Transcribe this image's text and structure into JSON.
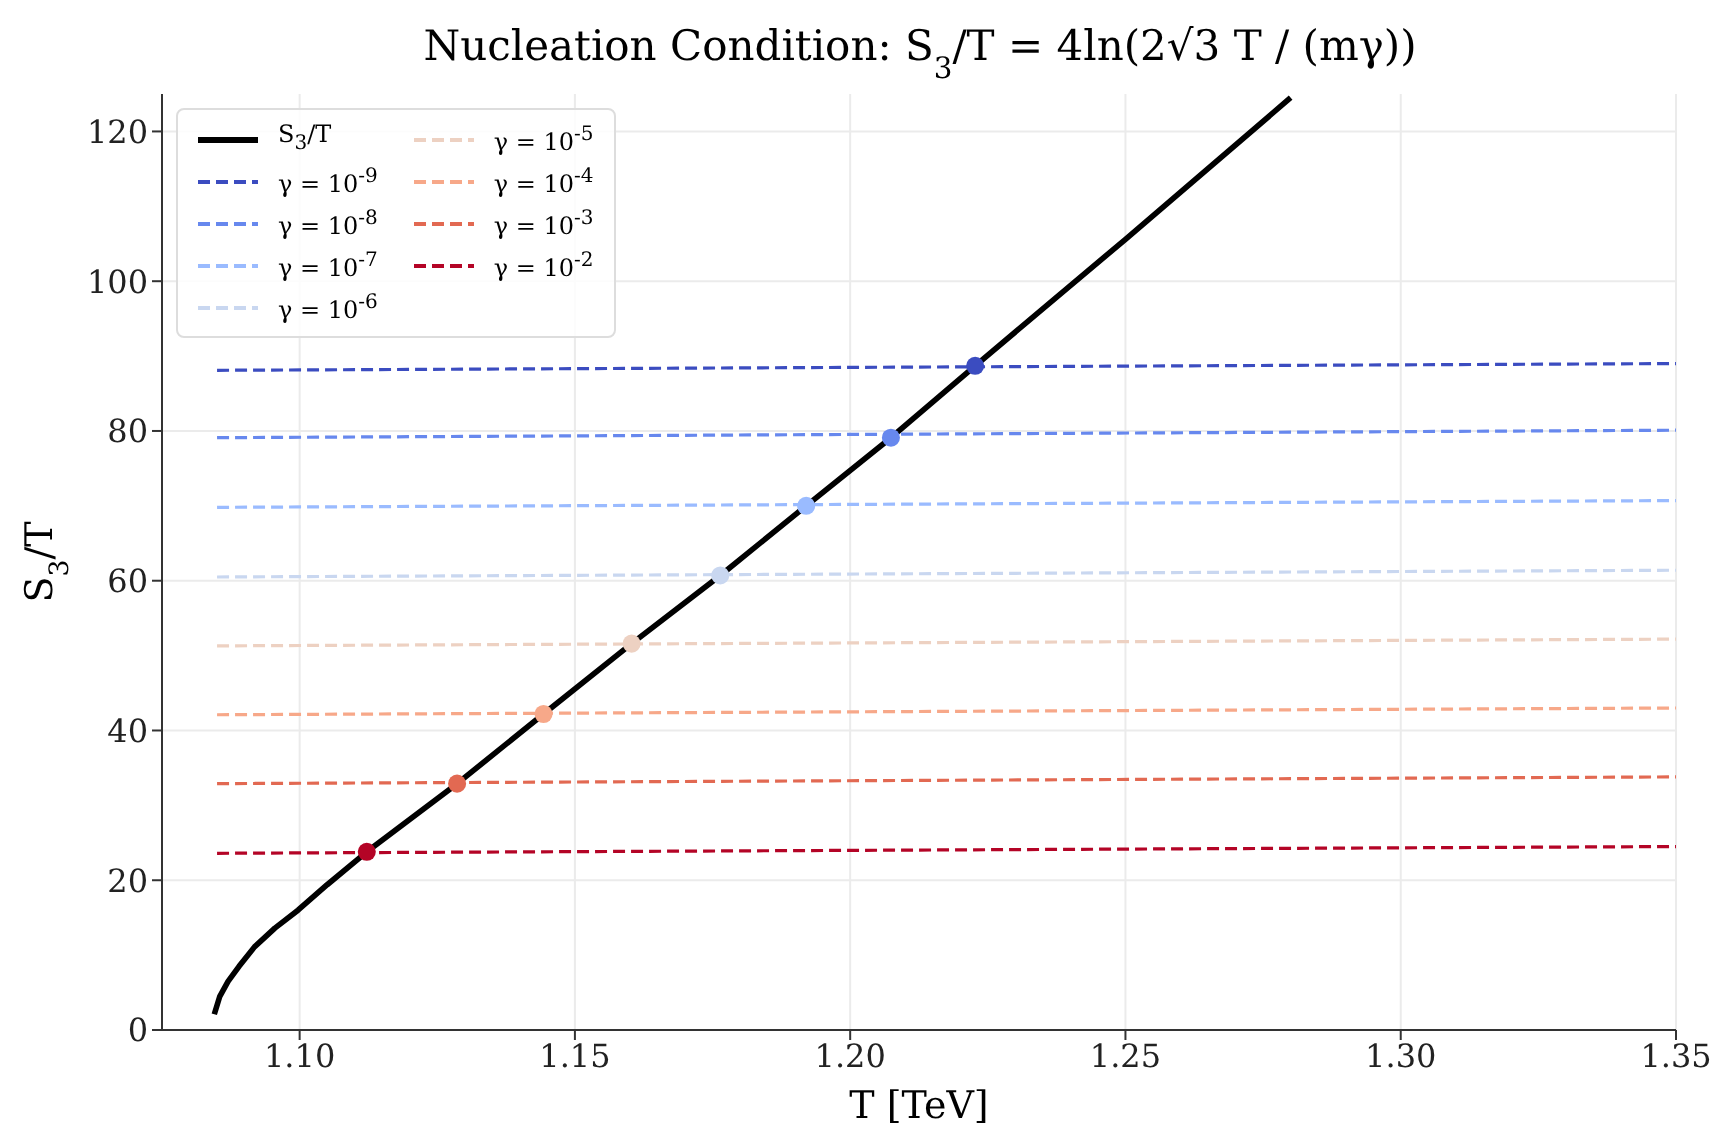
{
  "chart_data": {
    "type": "line",
    "title": "Nucleation Condition: S$_{3}$/T = 4ln(2√3 T / (mγ))",
    "xlabel": "T [TeV]",
    "ylabel": "S$_{3}$/T",
    "xlim": [
      1.075,
      1.35
    ],
    "xticks": [
      {
        "value": 1.1,
        "label": "1.10"
      },
      {
        "value": 1.15,
        "label": "1.15"
      },
      {
        "value": 1.2,
        "label": "1.20"
      },
      {
        "value": 1.25,
        "label": "1.25"
      },
      {
        "value": 1.3,
        "label": "1.30"
      },
      {
        "value": 1.35,
        "label": "1.35"
      }
    ],
    "ylim": [
      0,
      125
    ],
    "yticks": [
      0,
      20,
      40,
      60,
      80,
      100,
      120
    ],
    "grid": true,
    "legend": "top left",
    "series": [
      {
        "name": "S$_{3}$/T",
        "color": "#000000",
        "line_style": "solid",
        "marker": "none",
        "x": [
          1.0845,
          1.0855,
          1.087,
          1.089,
          1.0918,
          1.0955,
          1.0997,
          1.105,
          1.1122,
          1.1286,
          1.1443,
          1.1603,
          1.1764,
          1.192,
          1.2074,
          1.2227,
          1.25,
          1.28
        ],
        "values": [
          2.1,
          4.5,
          6.5,
          8.5,
          11.1,
          13.6,
          16.0,
          19.4,
          23.8,
          32.9,
          42.2,
          51.6,
          60.7,
          70,
          79.1,
          88.7,
          105.6,
          124.5
        ]
      },
      {
        "name": "γ = 10$^{-9}$",
        "type": "line",
        "color": "#3b4cc0",
        "line_style": "dashed",
        "marker": "none",
        "x": [
          1.085,
          1.35
        ],
        "values": [
          88.1,
          89.0
        ]
      },
      {
        "name": "γ = 10$^{-8}$",
        "type": "line",
        "color": "#6788ee",
        "line_style": "dashed",
        "marker": "none",
        "x": [
          1.085,
          1.35
        ],
        "values": [
          79.1,
          80.1
        ]
      },
      {
        "name": "γ = 10$^{-7}$",
        "type": "line",
        "color": "#9abbff",
        "line_style": "dashed",
        "marker": "none",
        "x": [
          1.085,
          1.35
        ],
        "values": [
          69.8,
          70.7
        ]
      },
      {
        "name": "γ = 10$^{-6}$",
        "type": "line",
        "color": "#c9d7f0",
        "line_style": "dashed",
        "marker": "none",
        "x": [
          1.085,
          1.35
        ],
        "values": [
          60.5,
          61.4
        ]
      },
      {
        "name": "γ = 10$^{-5}$",
        "type": "line",
        "color": "#edd1c2",
        "line_style": "dashed",
        "marker": "none",
        "x": [
          1.085,
          1.35
        ],
        "values": [
          51.3,
          52.2
        ]
      },
      {
        "name": "γ = 10$^{-4}$",
        "type": "line",
        "color": "#f7a889",
        "line_style": "dashed",
        "marker": "none",
        "x": [
          1.085,
          1.35
        ],
        "values": [
          42.1,
          43.0
        ]
      },
      {
        "name": "γ = 10$^{-3}$",
        "type": "line",
        "color": "#e26952",
        "line_style": "dashed",
        "marker": "none",
        "x": [
          1.085,
          1.35
        ],
        "values": [
          32.9,
          33.8
        ]
      },
      {
        "name": "γ = 10$^{-2}$",
        "type": "line",
        "color": "#b40426",
        "line_style": "dashed",
        "marker": "none",
        "x": [
          1.085,
          1.35
        ],
        "values": [
          23.6,
          24.5
        ]
      },
      {
        "type": "scatter",
        "marker": "circle",
        "x": [
          1.2227,
          1.2074,
          1.192,
          1.1764,
          1.1603,
          1.1443,
          1.1286,
          1.1122
        ],
        "values": [
          88.7,
          79.1,
          70.0,
          60.7,
          51.6,
          42.2,
          32.9,
          23.8
        ],
        "colors": [
          "#3b4cc0",
          "#6788ee",
          "#9abbff",
          "#c9d7f0",
          "#edd1c2",
          "#f7a889",
          "#e26952",
          "#b40426"
        ]
      }
    ]
  }
}
